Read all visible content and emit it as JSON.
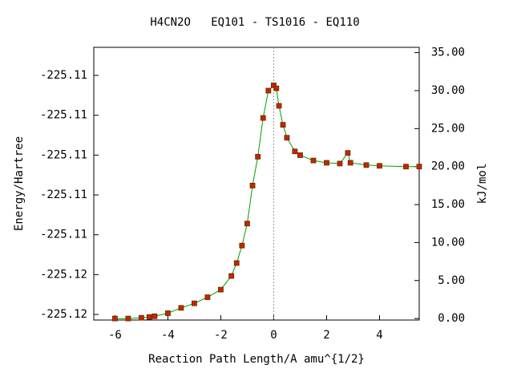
{
  "chart_data": {
    "type": "line",
    "title": "H4CN2O   EQ101 - TS1016 - EQ110",
    "x_label": "Reaction Path Length/A amu^{1/2}",
    "y_label": "Energy/Hartree",
    "y2_label": "kJ/mol",
    "x": [
      -6.0,
      -5.5,
      -5.0,
      -4.7,
      -4.5,
      -4.0,
      -3.5,
      -3.0,
      -2.5,
      -2.0,
      -1.6,
      -1.4,
      -1.2,
      -1.0,
      -0.8,
      -0.6,
      -0.4,
      -0.2,
      0.0,
      0.1,
      0.2,
      0.35,
      0.5,
      0.8,
      1.0,
      1.5,
      2.0,
      2.5,
      2.8,
      2.9,
      3.5,
      4.0,
      5.0,
      5.5
    ],
    "series": [
      {
        "name": "path",
        "color": "#00a000",
        "marker_color": "#cc2200",
        "axis": "y2",
        "values": [
          0.0,
          0.0,
          0.1,
          0.2,
          0.3,
          0.7,
          1.4,
          2.0,
          2.8,
          3.8,
          5.6,
          7.3,
          9.6,
          12.5,
          17.5,
          21.3,
          26.4,
          30.0,
          30.7,
          30.3,
          28.0,
          25.5,
          23.8,
          22.0,
          21.5,
          20.8,
          20.5,
          20.4,
          21.8,
          20.5,
          20.2,
          20.1,
          20.0,
          20.0
        ]
      }
    ],
    "xlim": [
      -6.8,
      5.5
    ],
    "xticks": [
      -6,
      -4,
      -2,
      0,
      2,
      4
    ],
    "ylim": [
      -225.11908,
      -225.10539
    ],
    "yticks": [
      {
        "value": -225.1188,
        "label": "-225.12"
      },
      {
        "value": -225.1168,
        "label": "-225.12"
      },
      {
        "value": -225.1148,
        "label": "-225.11"
      },
      {
        "value": -225.1128,
        "label": "-225.11"
      },
      {
        "value": -225.1108,
        "label": "-225.11"
      },
      {
        "value": -225.1088,
        "label": "-225.11"
      },
      {
        "value": -225.1068,
        "label": "-225.11"
      }
    ],
    "y2lim": [
      -0.2,
      35.7
    ],
    "y2ticks": [
      {
        "value": 0,
        "label": "0.00"
      },
      {
        "value": 5,
        "label": "5.00"
      },
      {
        "value": 10,
        "label": "10.00"
      },
      {
        "value": 15,
        "label": "15.00"
      },
      {
        "value": 20,
        "label": "20.00"
      },
      {
        "value": 25,
        "label": "25.00"
      },
      {
        "value": 30,
        "label": "30.00"
      },
      {
        "value": 35,
        "label": "35.00"
      }
    ]
  }
}
